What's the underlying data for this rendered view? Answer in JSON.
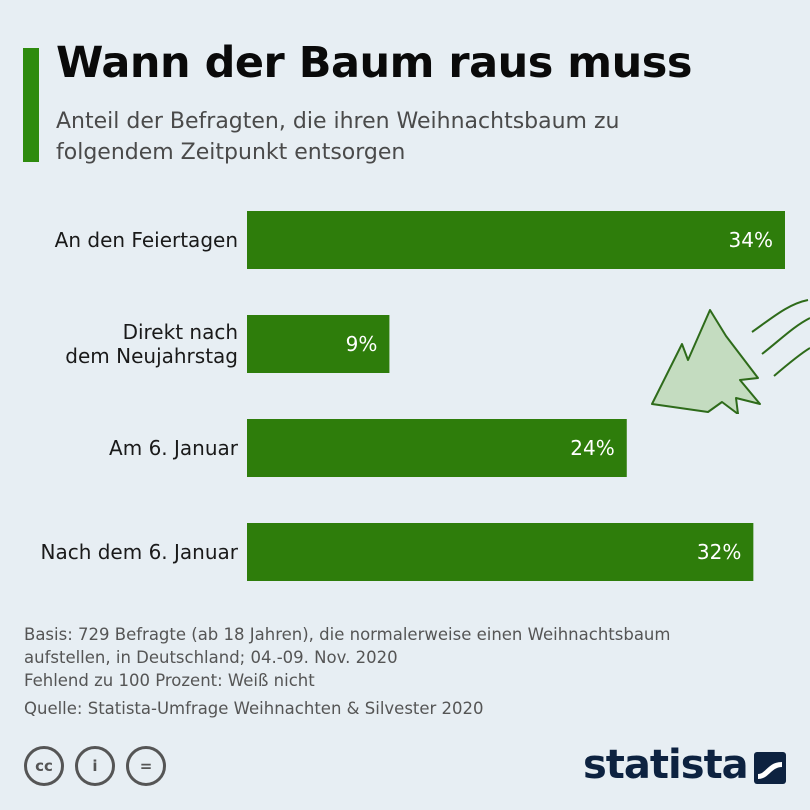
{
  "header": {
    "title": "Wann der Baum raus muss",
    "subtitle": "Anteil der Befragten, die ihren Weihnachtsbaum zu folgendem Zeitpunkt entsorgen"
  },
  "chart_data": {
    "type": "bar",
    "orientation": "horizontal",
    "categories": [
      [
        "An den Feiertagen"
      ],
      [
        "Direkt nach",
        "dem Neujahrstag"
      ],
      [
        "Am 6. Januar"
      ],
      [
        "Nach dem 6. Januar"
      ]
    ],
    "values": [
      34,
      9,
      24,
      32
    ],
    "value_labels": [
      "34%",
      "9%",
      "24%",
      "32%"
    ],
    "xlim": [
      0,
      34
    ],
    "bar_color": "#2e7d0b",
    "grid": false
  },
  "notes": {
    "basis_line1": "Basis: 729 Befragte (ab 18 Jahren), die normalerweise einen Weihnachtsbaum",
    "basis_line2": "aufstellen, in Deutschland; 04.-09. Nov. 2020",
    "missing": "Fehlend zu 100 Prozent: Weiß nicht",
    "source": "Quelle: Statista-Umfrage Weihnachten & Silvester 2020"
  },
  "license_icons": [
    "cc",
    "i",
    "="
  ],
  "brand": {
    "name": "statista"
  },
  "colors": {
    "accent": "#2e8b0e",
    "background": "#e7eef3",
    "brand": "#0d2240"
  }
}
